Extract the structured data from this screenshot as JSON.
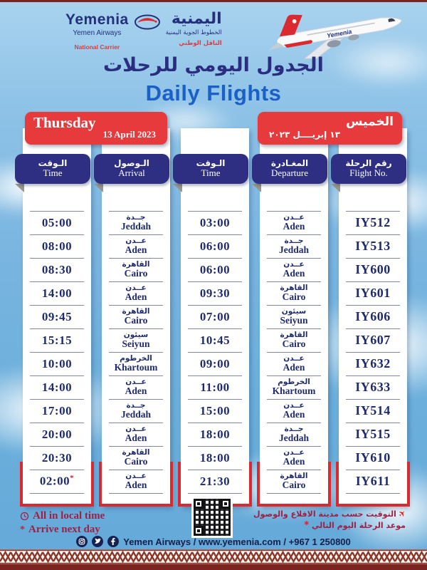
{
  "colors": {
    "accent_red": "#e63a3c",
    "navy": "#2e2f83",
    "text_navy": "#1f2b6e",
    "highlight_red": "#da2a30",
    "note_maroon": "#9e2145",
    "pattern_maroon": "#8c372b",
    "daily_flights_blue": "#1b60c6"
  },
  "header": {
    "logo": {
      "latin_name": "Yemenia",
      "latin_sub": "Yemen Airways",
      "latin_tag": "National Carrier",
      "arabic_name": "اليمنية",
      "arabic_sub": "الخطوط الجوية اليمنية",
      "arabic_tag": "الناقل الوطني"
    },
    "title_ar": "الجدول اليومي للرحلات",
    "title_en": "Daily Flights"
  },
  "date": {
    "day_en": "Thursday",
    "date_en": "13 April 2023",
    "day_ar": "الخميس",
    "date_ar": "١٣ إبريــــل ٢٠٢٣"
  },
  "table": {
    "headers": {
      "arr_time": {
        "ar": "الـوقت",
        "en": "Time"
      },
      "arrival": {
        "ar": "الـوصول",
        "en": "Arrival"
      },
      "dep_time": {
        "ar": "الـوقت",
        "en": "Time"
      },
      "departure": {
        "ar": "المغـادرة",
        "en": "Departure"
      },
      "flight_no": {
        "ar": "رقم الرحلة",
        "en": "Flight No."
      }
    },
    "flights": [
      {
        "flight_no": "IY512",
        "departure": {
          "ar": "عــدن",
          "en": "Aden"
        },
        "dep_time": "03:00",
        "arrival": {
          "ar": "جــدة",
          "en": "Jeddah"
        },
        "arr_time": "05:00",
        "arr_next_day": false
      },
      {
        "flight_no": "IY513",
        "departure": {
          "ar": "جــدة",
          "en": "Jeddah"
        },
        "dep_time": "06:00",
        "arrival": {
          "ar": "عــدن",
          "en": "Aden"
        },
        "arr_time": "08:00",
        "arr_next_day": false
      },
      {
        "flight_no": "IY600",
        "departure": {
          "ar": "عــدن",
          "en": "Aden"
        },
        "dep_time": "06:00",
        "arrival": {
          "ar": "القاهرة",
          "en": "Cairo"
        },
        "arr_time": "08:30",
        "arr_next_day": false
      },
      {
        "flight_no": "IY601",
        "departure": {
          "ar": "القاهرة",
          "en": "Cairo"
        },
        "dep_time": "09:30",
        "arrival": {
          "ar": "عــدن",
          "en": "Aden"
        },
        "arr_time": "14:00",
        "arr_next_day": false
      },
      {
        "flight_no": "IY606",
        "departure": {
          "ar": "سيئون",
          "en": "Seiyun"
        },
        "dep_time": "07:00",
        "arrival": {
          "ar": "القاهرة",
          "en": "Cairo"
        },
        "arr_time": "09:45",
        "arr_next_day": false
      },
      {
        "flight_no": "IY607",
        "departure": {
          "ar": "القاهرة",
          "en": "Cairo"
        },
        "dep_time": "10:45",
        "arrival": {
          "ar": "سيئون",
          "en": "Seiyun"
        },
        "arr_time": "15:15",
        "arr_next_day": false
      },
      {
        "flight_no": "IY632",
        "departure": {
          "ar": "عــدن",
          "en": "Aden"
        },
        "dep_time": "09:00",
        "arrival": {
          "ar": "الخرطوم",
          "en": "Khartoum"
        },
        "arr_time": "10:00",
        "arr_next_day": false
      },
      {
        "flight_no": "IY633",
        "departure": {
          "ar": "الخرطوم",
          "en": "Khartoum"
        },
        "dep_time": "11:00",
        "arrival": {
          "ar": "عــدن",
          "en": "Aden"
        },
        "arr_time": "14:00",
        "arr_next_day": false
      },
      {
        "flight_no": "IY514",
        "departure": {
          "ar": "عــدن",
          "en": "Aden"
        },
        "dep_time": "15:00",
        "arrival": {
          "ar": "جــدة",
          "en": "Jeddah"
        },
        "arr_time": "17:00",
        "arr_next_day": false
      },
      {
        "flight_no": "IY515",
        "departure": {
          "ar": "جــدة",
          "en": "Jeddah"
        },
        "dep_time": "18:00",
        "arrival": {
          "ar": "عــدن",
          "en": "Aden"
        },
        "arr_time": "20:00",
        "arr_next_day": false
      },
      {
        "flight_no": "IY610",
        "departure": {
          "ar": "عــدن",
          "en": "Aden"
        },
        "dep_time": "18:00",
        "arrival": {
          "ar": "القاهرة",
          "en": "Cairo"
        },
        "arr_time": "20:30",
        "arr_next_day": false
      },
      {
        "flight_no": "IY611",
        "departure": {
          "ar": "القاهرة",
          "en": "Cairo"
        },
        "dep_time": "21:30",
        "arrival": {
          "ar": "عــدن",
          "en": "Aden"
        },
        "arr_time": "02:00",
        "arr_next_day": true
      }
    ]
  },
  "footer": {
    "note_local": "All in local time",
    "note_next": "Arrive next day",
    "note_next_marker": "*",
    "note_ar_1": "التوقيت حسب مدينة الاقلاع والوصول",
    "note_ar_2": "موعد الرحلة اليوم التالي",
    "contact": "Yemen Airways / www.yemenia.com / +967 1 250800",
    "social": [
      "instagram",
      "twitter",
      "facebook"
    ]
  }
}
